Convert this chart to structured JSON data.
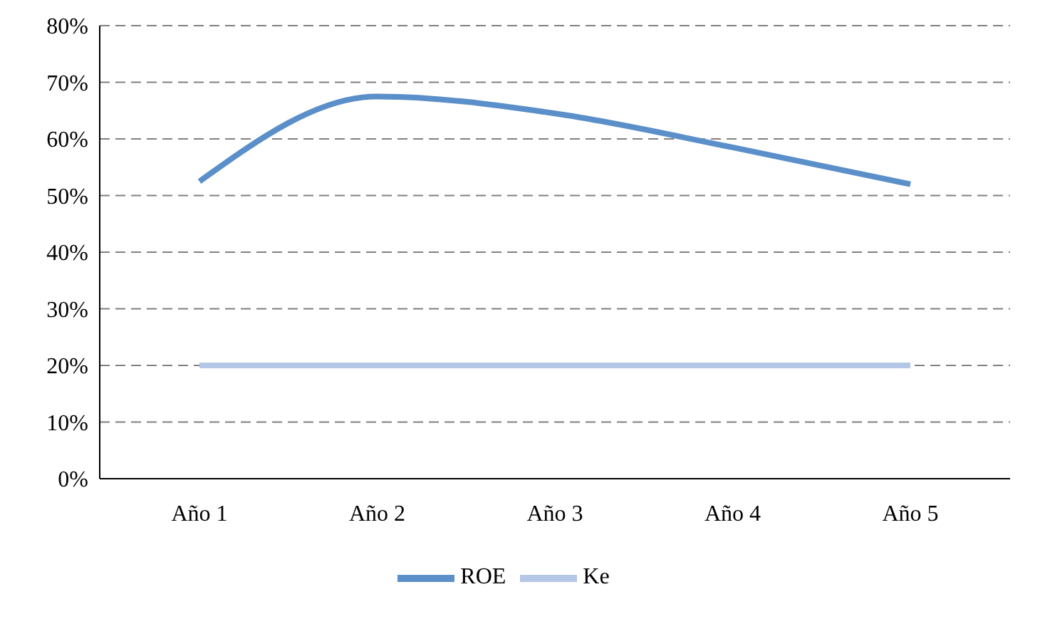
{
  "chart_data": {
    "type": "line",
    "categories": [
      "Año 1",
      "Año 2",
      "Año 3",
      "Año 4",
      "Año 5"
    ],
    "series": [
      {
        "name": "ROE",
        "color": "#5b8fc9",
        "values": [
          52.5,
          67.5,
          64.5,
          58.5,
          52
        ]
      },
      {
        "name": "Ke",
        "color": "#b4c7e7",
        "values": [
          20,
          20,
          20,
          20,
          20
        ]
      }
    ],
    "ylim": [
      0,
      80
    ],
    "yticks": [
      {
        "value": 0,
        "label": "0%"
      },
      {
        "value": 10,
        "label": "10%"
      },
      {
        "value": 20,
        "label": "20%"
      },
      {
        "value": 30,
        "label": "30%"
      },
      {
        "value": 40,
        "label": "40%"
      },
      {
        "value": 50,
        "label": "50%"
      },
      {
        "value": 60,
        "label": "60%"
      },
      {
        "value": 70,
        "label": "70%"
      },
      {
        "value": 80,
        "label": "80%"
      }
    ],
    "grid": "y",
    "legend": "bottom",
    "marker": "none",
    "line_style": "solid"
  }
}
